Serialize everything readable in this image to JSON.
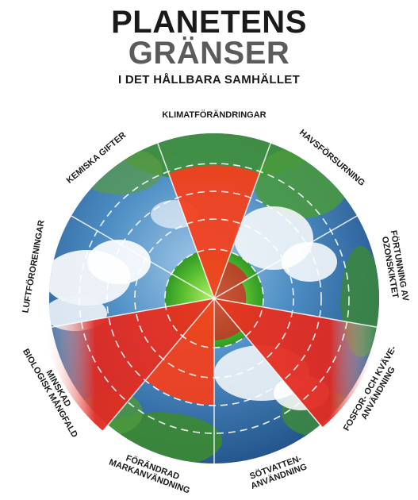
{
  "title": {
    "line1": "PLANETENS",
    "line2": "GRÄNSER",
    "line3": "I DET HÅLLBARA SAMHÄLLET"
  },
  "colors": {
    "exceeded": "#f2401f",
    "safe": "#37b52a",
    "risk_edge": "#d8222a",
    "earth_blue": "#3d7fb8",
    "earth_green": "#3f8f3a",
    "cloud": "#f4f7fa"
  },
  "boundaries": [
    {
      "id": "klimat",
      "lines": [
        "KLIMATFÖRÄNDRINGAR"
      ],
      "status": "exceeded",
      "level": 0.88
    },
    {
      "id": "hav",
      "lines": [
        "HAVSFÖRSURNING"
      ],
      "status": "safe",
      "level": 0.45
    },
    {
      "id": "ozon",
      "lines": [
        "FÖRTUNNING AV",
        "OZONSKIKTET"
      ],
      "status": "safe",
      "level": 0.3
    },
    {
      "id": "fosfor",
      "lines": [
        "FOSFOR- OCH KVÄVE-",
        "ANVÄNDNING"
      ],
      "status": "exceeded",
      "level": 1.25
    },
    {
      "id": "sotvatten",
      "lines": [
        "SÖTVATTEN-",
        "ANVÄNDNING"
      ],
      "status": "safe",
      "level": 0.5
    },
    {
      "id": "mark",
      "lines": [
        "FÖRÄNDRAD",
        "MARKANVÄNDNING"
      ],
      "status": "exceeded",
      "level": 0.6
    },
    {
      "id": "biologisk",
      "lines": [
        "MINSKAD",
        "BIOLOGISK MÅNGFALD"
      ],
      "status": "exceeded",
      "level": 1.3
    },
    {
      "id": "luft",
      "lines": [
        "LUFTFÖRORENINGAR"
      ],
      "status": "unknown",
      "level": 0
    },
    {
      "id": "kemiska",
      "lines": [
        "KEMISKA GIFTER"
      ],
      "status": "unknown",
      "level": 0
    }
  ]
}
